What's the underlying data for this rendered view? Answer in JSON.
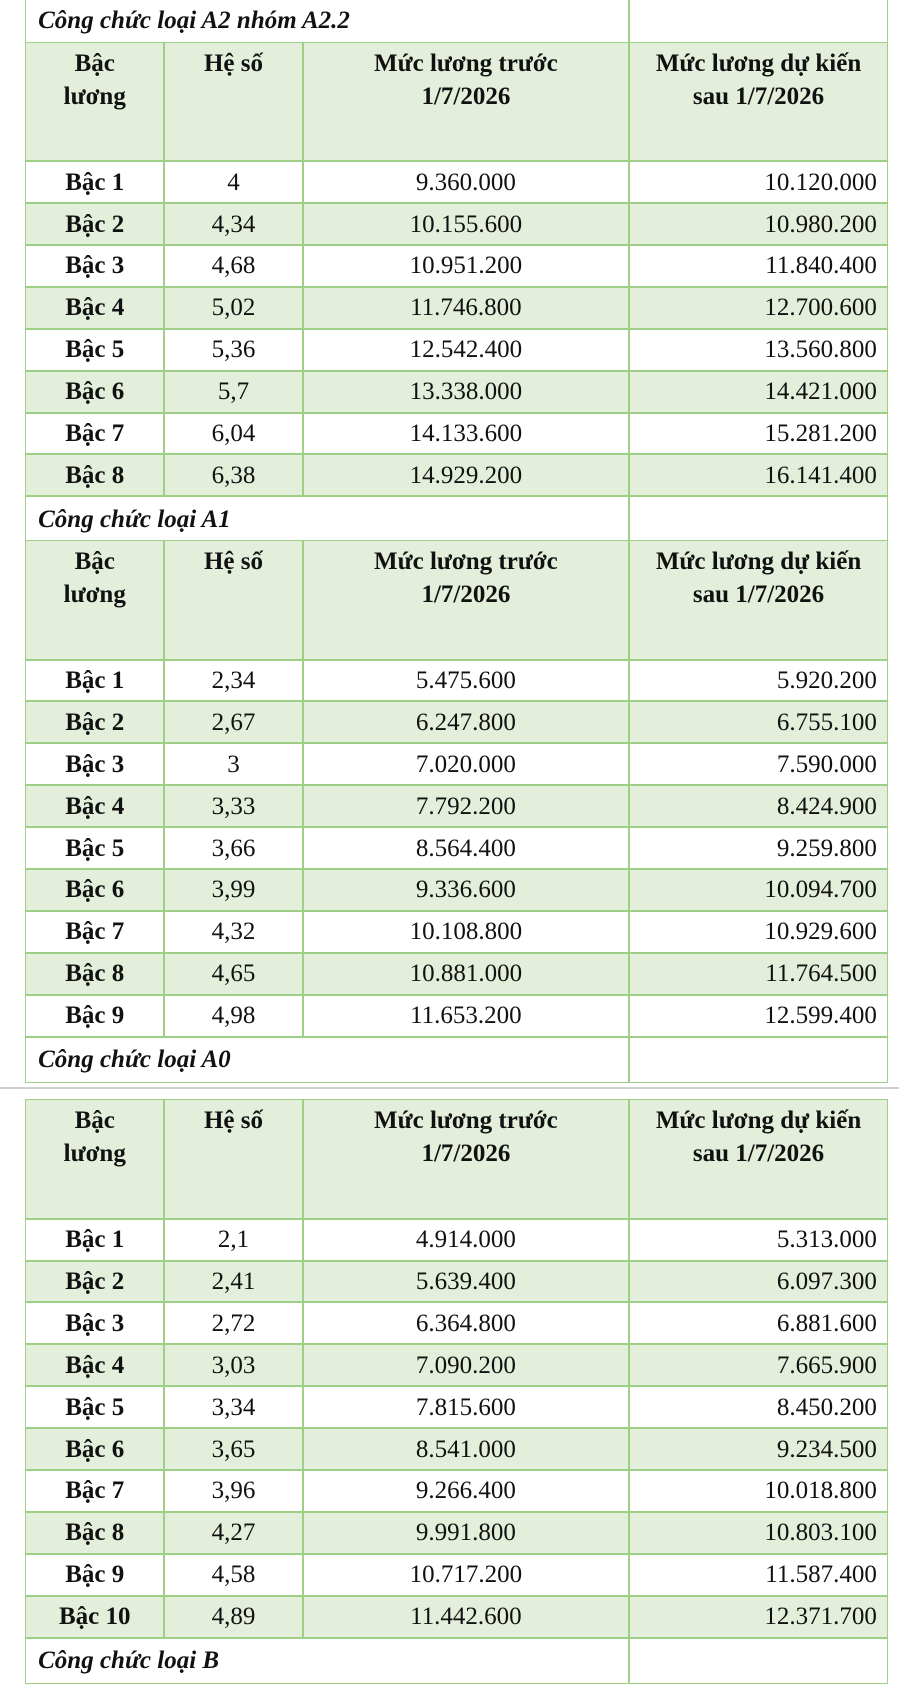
{
  "sections": [
    {
      "title": "Công chức loại A2 nhóm A2.2",
      "header": [
        "Bậc lương",
        "Hệ số",
        "Mức lương trước 1/7/2026",
        "Mức lương dự kiến sau 1/7/2026"
      ],
      "rows": [
        [
          "Bậc 1",
          "4",
          "9.360.000",
          "10.120.000"
        ],
        [
          "Bậc 2",
          "4,34",
          "10.155.600",
          "10.980.200"
        ],
        [
          "Bậc 3",
          "4,68",
          "10.951.200",
          "11.840.400"
        ],
        [
          "Bậc 4",
          "5,02",
          "11.746.800",
          "12.700.600"
        ],
        [
          "Bậc 5",
          "5,36",
          "12.542.400",
          "13.560.800"
        ],
        [
          "Bậc 6",
          "5,7",
          "13.338.000",
          "14.421.000"
        ],
        [
          "Bậc 7",
          "6,04",
          "14.133.600",
          "15.281.200"
        ],
        [
          "Bậc 8",
          "6,38",
          "14.929.200",
          "16.141.400"
        ]
      ]
    },
    {
      "title": "Công chức loại A1",
      "header": [
        "Bậc lương",
        "Hệ số",
        "Mức lương trước 1/7/2026",
        "Mức lương dự kiến sau 1/7/2026"
      ],
      "rows": [
        [
          "Bậc 1",
          "2,34",
          "5.475.600",
          "5.920.200"
        ],
        [
          "Bậc 2",
          "2,67",
          "6.247.800",
          "6.755.100"
        ],
        [
          "Bậc 3",
          "3",
          "7.020.000",
          "7.590.000"
        ],
        [
          "Bậc 4",
          "3,33",
          "7.792.200",
          "8.424.900"
        ],
        [
          "Bậc 5",
          "3,66",
          "8.564.400",
          "9.259.800"
        ],
        [
          "Bậc 6",
          "3,99",
          "9.336.600",
          "10.094.700"
        ],
        [
          "Bậc 7",
          "4,32",
          "10.108.800",
          "10.929.600"
        ],
        [
          "Bậc 8",
          "4,65",
          "10.881.000",
          "11.764.500"
        ],
        [
          "Bậc 9",
          "4,98",
          "11.653.200",
          "12.599.400"
        ]
      ]
    },
    {
      "title": "Công chức loại A0",
      "header": [
        "Bậc lương",
        "Hệ số",
        "Mức lương trước 1/7/2026",
        "Mức lương dự kiến sau 1/7/2026"
      ],
      "rows": [
        [
          "Bậc 1",
          "2,1",
          "4.914.000",
          "5.313.000"
        ],
        [
          "Bậc 2",
          "2,41",
          "5.639.400",
          "6.097.300"
        ],
        [
          "Bậc 3",
          "2,72",
          "6.364.800",
          "6.881.600"
        ],
        [
          "Bậc 4",
          "3,03",
          "7.090.200",
          "7.665.900"
        ],
        [
          "Bậc 5",
          "3,34",
          "7.815.600",
          "8.450.200"
        ],
        [
          "Bậc 6",
          "3,65",
          "8.541.000",
          "9.234.500"
        ],
        [
          "Bậc 7",
          "3,96",
          "9.266.400",
          "10.018.800"
        ],
        [
          "Bậc 8",
          "4,27",
          "9.991.800",
          "10.803.100"
        ],
        [
          "Bậc 9",
          "4,58",
          "10.717.200",
          "11.587.400"
        ],
        [
          "Bậc 10",
          "4,89",
          "11.442.600",
          "12.371.700"
        ]
      ]
    },
    {
      "title": "Công chức loại B"
    }
  ]
}
